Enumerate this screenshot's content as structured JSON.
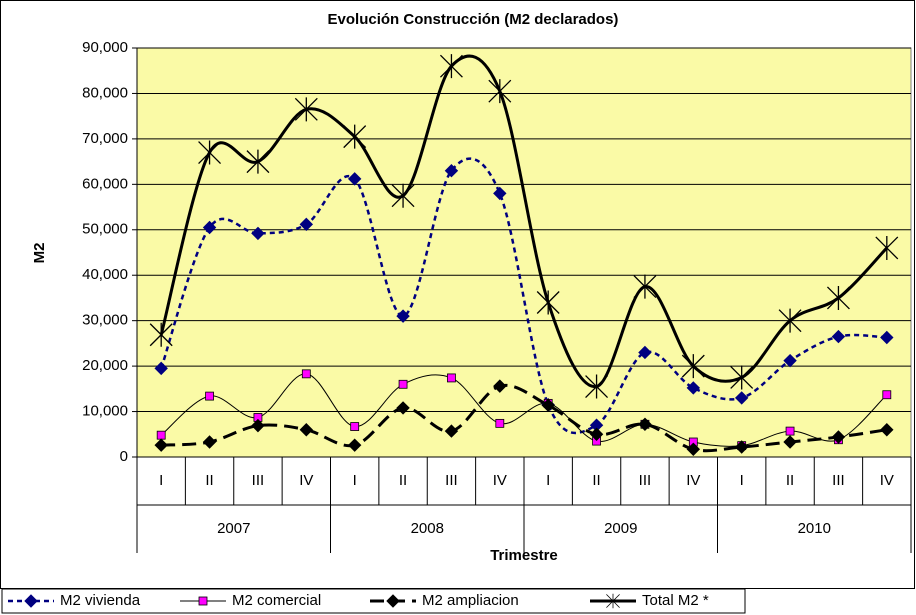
{
  "chart_data": {
    "type": "line",
    "title": "Evolución Construcción (M2 declarados)",
    "x_label": "Trimestre",
    "y_label": "M2",
    "categories": [
      "I",
      "II",
      "III",
      "IV",
      "I",
      "II",
      "III",
      "IV",
      "I",
      "II",
      "III",
      "IV",
      "I",
      "II",
      "III",
      "IV"
    ],
    "groups": [
      "2007",
      "2008",
      "2009",
      "2010"
    ],
    "ylim": [
      0,
      90000
    ],
    "yticks": [
      0,
      {
        "value": 10000,
        "label": "10,000"
      },
      {
        "value": 20000,
        "label": "20,000"
      },
      {
        "value": 30000,
        "label": "30,000"
      },
      {
        "value": 40000,
        "label": "40,000"
      },
      {
        "value": 50000,
        "label": "50,000"
      },
      {
        "value": 60000,
        "label": "60,000"
      },
      {
        "value": 70000,
        "label": "70,000"
      },
      {
        "value": 80000,
        "label": "80,000"
      },
      {
        "value": 90000,
        "label": "90,000"
      }
    ],
    "grid": true,
    "smooth": true,
    "background": "#fafaa6",
    "legend": "bottom-left",
    "series": [
      {
        "name": "M2 vivienda",
        "color": "#000080",
        "marker_color": "#000080",
        "marker": "diamond",
        "line_style": "dotted",
        "line_width": 2.5,
        "values": [
          19500,
          50500,
          49200,
          51200,
          61200,
          31000,
          63000,
          58000,
          11500,
          7000,
          23000,
          15200,
          13000,
          21200,
          26500,
          26300
        ]
      },
      {
        "name": "M2 comercial",
        "color": "#000000",
        "marker_color": "#ff00ff",
        "marker": "square",
        "line_style": "solid",
        "line_width": 1,
        "values": [
          4800,
          13400,
          8700,
          18300,
          6700,
          16000,
          17400,
          7400,
          11800,
          3500,
          7200,
          3300,
          2500,
          5700,
          3800,
          13700
        ]
      },
      {
        "name": "M2 ampliacion",
        "color": "#000000",
        "marker_color": "#000000",
        "marker": "diamond",
        "line_style": "dashed",
        "line_width": 3,
        "values": [
          2600,
          3300,
          6900,
          6000,
          2600,
          10800,
          5700,
          15600,
          11400,
          5000,
          7200,
          1700,
          2200,
          3300,
          4400,
          6000
        ]
      },
      {
        "name": "Total M2 *",
        "color": "#000000",
        "marker_color": "#000000",
        "marker": "star",
        "line_style": "solid",
        "line_width": 3,
        "values": [
          26900,
          67000,
          65000,
          76500,
          70500,
          57500,
          86000,
          80500,
          34000,
          15500,
          37500,
          20000,
          17500,
          30000,
          35000,
          46000
        ]
      }
    ]
  }
}
